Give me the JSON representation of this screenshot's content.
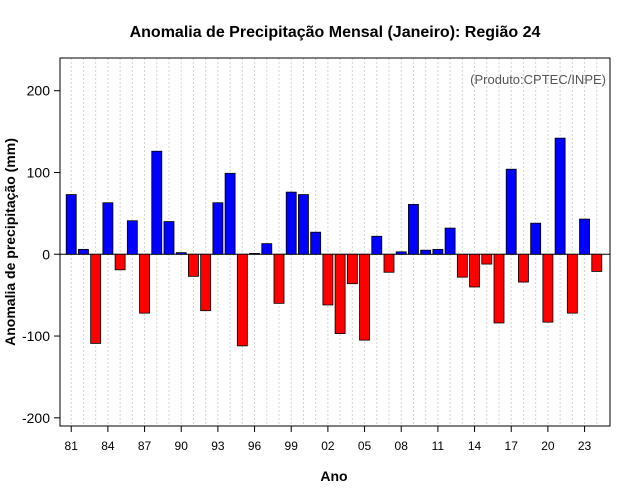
{
  "chart_data": {
    "type": "bar",
    "title": "Anomalia de Precipitação Mensal (Janeiro): Região 24",
    "annotation": "(Produto:CPTEC/INPE)",
    "xlabel": "Ano",
    "ylabel": "Anomalia de precipitação (mm)",
    "ylim": [
      -210,
      240
    ],
    "yticks": [
      -200,
      -100,
      0,
      100,
      200
    ],
    "xtick_labels": [
      "81",
      "84",
      "87",
      "90",
      "93",
      "96",
      "99",
      "02",
      "05",
      "08",
      "11",
      "14",
      "17",
      "20",
      "23"
    ],
    "xtick_every": 3,
    "grid": true,
    "positive_color": "#0000ff",
    "negative_color": "#ff0000",
    "categories": [
      "1981",
      "1982",
      "1983",
      "1984",
      "1985",
      "1986",
      "1987",
      "1988",
      "1989",
      "1990",
      "1991",
      "1992",
      "1993",
      "1994",
      "1995",
      "1996",
      "1997",
      "1998",
      "1999",
      "2000",
      "2001",
      "2002",
      "2003",
      "2004",
      "2005",
      "2006",
      "2007",
      "2008",
      "2009",
      "2010",
      "2011",
      "2012",
      "2013",
      "2014",
      "2015",
      "2016",
      "2017",
      "2018",
      "2019",
      "2020",
      "2021",
      "2022",
      "2023",
      "2024"
    ],
    "values": [
      73,
      6,
      -109,
      63,
      -19,
      41,
      -72,
      126,
      40,
      2,
      -27,
      -69,
      63,
      99,
      -112,
      1,
      13,
      -60,
      76,
      73,
      27,
      -62,
      -97,
      -36,
      -105,
      22,
      -22,
      3,
      61,
      5,
      6,
      32,
      -28,
      -40,
      -12,
      -84,
      104,
      -34,
      38,
      -83,
      142,
      -72,
      43,
      -21
    ]
  }
}
